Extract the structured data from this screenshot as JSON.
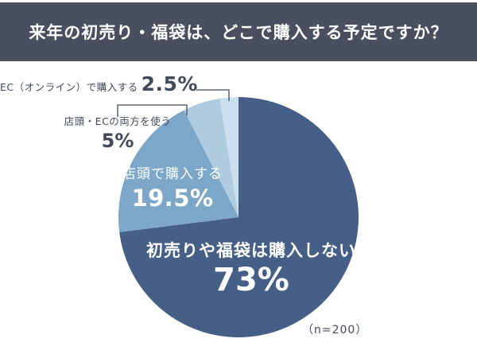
{
  "header": {
    "title": "来年の初売り・福袋は、どこで購入する予定ですか？"
  },
  "colors": {
    "header_bar": "#494f5f",
    "label_dark": "#414a5b",
    "leader_line": "#414a5b",
    "slice_none": "#455f87",
    "slice_store": "#7ca7c8",
    "slice_both": "#aecbdf",
    "slice_ec": "#cbe0ee",
    "inner_label": "#ffffff",
    "background": "#ffffff"
  },
  "chart_data": {
    "type": "pie",
    "title": "来年の初売り・福袋は、どこで購入する予定ですか？",
    "start_angle_deg": 0,
    "direction": "clockwise",
    "legend_position": "none",
    "slices": [
      {
        "label": "初売りや福袋は購入しない",
        "value_pct": 73,
        "display": "73%",
        "color": "#455f87",
        "label_placement": "inside"
      },
      {
        "label": "店頭で購入する",
        "value_pct": 19.5,
        "display": "19.5%",
        "color": "#7ca7c8",
        "label_placement": "inside"
      },
      {
        "label": "店頭・ECの両方を使う",
        "value_pct": 5,
        "display": "5%",
        "color": "#aecbdf",
        "label_placement": "outside"
      },
      {
        "label": "EC（オンライン）で購入する",
        "value_pct": 2.5,
        "display": "2.5%",
        "color": "#cbe0ee",
        "label_placement": "outside"
      }
    ],
    "sample_size_note": "（n=200）"
  }
}
